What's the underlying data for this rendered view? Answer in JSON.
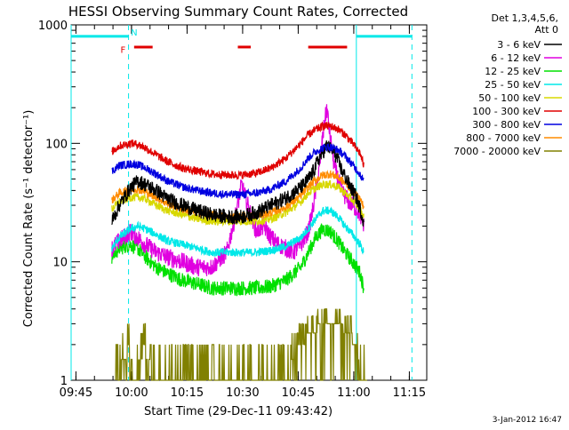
{
  "chart_data": {
    "type": "line",
    "title": "HESSI Observing Summary Count Rates, Corrected",
    "xlabel": "Start Time (29-Dec-11 09:43:42)",
    "ylabel": "Corrected Count Rate (s⁻¹ detector⁻¹)",
    "x_unit": "minutes after 09:43:42",
    "xlim": [
      0,
      96
    ],
    "ylim": [
      1,
      1000
    ],
    "yscale": "log",
    "x_ticks": [
      {
        "label": "09:45",
        "x": 1.3
      },
      {
        "label": "10:00",
        "x": 16.3
      },
      {
        "label": "10:15",
        "x": 31.3
      },
      {
        "label": "10:30",
        "x": 46.3
      },
      {
        "label": "10:45",
        "x": 61.3
      },
      {
        "label": "11:00",
        "x": 76.3
      },
      {
        "label": "11:15",
        "x": 91.3
      }
    ],
    "y_ticks": [
      {
        "label": "1",
        "value": 1
      },
      {
        "label": "10",
        "value": 10
      },
      {
        "label": "100",
        "value": 100
      },
      {
        "label": "1000",
        "value": 1000
      }
    ],
    "legend": {
      "position": "right",
      "header": [
        "Det 1,3,4,5,6,",
        "Att 0"
      ],
      "entries": [
        {
          "label": "3 - 6 keV",
          "color": "#000000"
        },
        {
          "label": "6 - 12 keV",
          "color": "#e000e0"
        },
        {
          "label": "12 - 25 keV",
          "color": "#00e000"
        },
        {
          "label": "25 - 50 keV",
          "color": "#00e8e8"
        },
        {
          "label": "50 - 100 keV",
          "color": "#d8d800"
        },
        {
          "label": "100 - 300 keV",
          "color": "#e00000"
        },
        {
          "label": "300 - 800 keV",
          "color": "#0000e0"
        },
        {
          "label": "800 - 7000 keV",
          "color": "#ff8c00"
        },
        {
          "label": "7000 - 20000 keV",
          "color": "#808000"
        }
      ]
    },
    "series": [
      {
        "name": "3 - 6 keV",
        "color": "#000000",
        "x": [
          11,
          13,
          16,
          18,
          20,
          23,
          26,
          30,
          34,
          38,
          42,
          46,
          48,
          50,
          53,
          56,
          60,
          63,
          65,
          67,
          69,
          71,
          73,
          75,
          77,
          78,
          79
        ],
        "y": [
          22,
          30,
          42,
          48,
          45,
          40,
          34,
          30,
          27,
          25,
          24,
          24,
          25,
          26,
          29,
          32,
          38,
          45,
          55,
          75,
          95,
          85,
          60,
          45,
          35,
          28,
          22
        ]
      },
      {
        "name": "6 - 12 keV",
        "color": "#e000e0",
        "x": [
          11,
          13,
          16,
          18,
          20,
          23,
          26,
          30,
          34,
          38,
          42,
          45,
          46,
          48,
          50,
          52,
          54,
          56,
          58,
          60,
          62,
          64,
          65,
          67,
          68,
          69,
          70,
          71,
          73,
          75,
          77,
          78,
          79
        ],
        "y": [
          13,
          15,
          18,
          16,
          14,
          12,
          11,
          10,
          9,
          9,
          12,
          30,
          45,
          28,
          18,
          20,
          16,
          14,
          13,
          12,
          14,
          18,
          25,
          60,
          120,
          200,
          110,
          65,
          40,
          32,
          28,
          25,
          20
        ]
      },
      {
        "name": "12 - 25 keV",
        "color": "#00e000",
        "x": [
          11,
          13,
          16,
          18,
          20,
          23,
          26,
          30,
          34,
          38,
          42,
          46,
          50,
          54,
          58,
          62,
          64,
          66,
          68,
          70,
          72,
          74,
          76,
          78,
          79
        ],
        "y": [
          11,
          13,
          14,
          13,
          11,
          9,
          8,
          7,
          6.5,
          6,
          6,
          6,
          6,
          6.2,
          7,
          9,
          12,
          16,
          19,
          18,
          15,
          12,
          10,
          8,
          6
        ]
      },
      {
        "name": "25 - 50 keV",
        "color": "#00e8e8",
        "x": [
          11,
          13,
          16,
          18,
          20,
          23,
          26,
          30,
          34,
          38,
          42,
          46,
          50,
          54,
          58,
          62,
          64,
          66,
          68,
          70,
          72,
          74,
          76,
          78,
          79
        ],
        "y": [
          13,
          16,
          19,
          20,
          19,
          17,
          15,
          14,
          13,
          12,
          12,
          12,
          12,
          12.5,
          13.5,
          16,
          19,
          23,
          27,
          27,
          24,
          20,
          17,
          14,
          12
        ]
      },
      {
        "name": "50 - 100 keV",
        "color": "#d8d800",
        "x": [
          11,
          13,
          16,
          18,
          20,
          23,
          26,
          30,
          34,
          38,
          42,
          46,
          50,
          54,
          58,
          62,
          64,
          66,
          68,
          70,
          72,
          74,
          76,
          78,
          79
        ],
        "y": [
          28,
          32,
          35,
          35,
          34,
          30,
          27,
          25,
          23,
          22,
          22,
          22,
          22,
          23,
          26,
          32,
          38,
          42,
          45,
          45,
          43,
          38,
          33,
          28,
          24
        ]
      },
      {
        "name": "100 - 300 keV",
        "color": "#e00000",
        "x": [
          11,
          13,
          16,
          18,
          20,
          23,
          26,
          30,
          34,
          38,
          42,
          46,
          50,
          54,
          58,
          62,
          64,
          66,
          68,
          70,
          72,
          74,
          76,
          78,
          79
        ],
        "y": [
          85,
          95,
          100,
          98,
          92,
          80,
          70,
          62,
          58,
          55,
          54,
          54,
          56,
          62,
          75,
          100,
          118,
          130,
          140,
          140,
          132,
          118,
          100,
          82,
          65
        ]
      },
      {
        "name": "300 - 800 keV",
        "color": "#0000e0",
        "x": [
          11,
          13,
          16,
          18,
          20,
          23,
          26,
          30,
          34,
          38,
          42,
          46,
          50,
          54,
          58,
          62,
          64,
          66,
          68,
          70,
          72,
          74,
          76,
          78,
          79
        ],
        "y": [
          58,
          65,
          67,
          66,
          62,
          55,
          48,
          43,
          40,
          38,
          37,
          37,
          38,
          41,
          48,
          62,
          75,
          85,
          92,
          93,
          88,
          78,
          66,
          55,
          48
        ]
      },
      {
        "name": "800 - 7000 keV",
        "color": "#ff8c00",
        "x": [
          11,
          13,
          16,
          18,
          20,
          23,
          26,
          30,
          34,
          38,
          42,
          46,
          50,
          54,
          58,
          62,
          64,
          66,
          68,
          70,
          72,
          74,
          76,
          78,
          79
        ],
        "y": [
          33,
          38,
          41,
          41,
          39,
          35,
          31,
          28,
          26,
          25,
          24,
          24,
          24.5,
          26,
          29,
          36,
          43,
          49,
          54,
          55,
          52,
          46,
          40,
          34,
          29
        ]
      },
      {
        "name": "7000 - 20000 keV",
        "color": "#808000",
        "x": [
          12,
          16,
          17,
          20,
          22,
          58,
          62,
          65,
          68,
          72,
          75,
          77,
          78,
          80
        ],
        "y": [
          1,
          2,
          1,
          2,
          1,
          1,
          2,
          2.5,
          3,
          3,
          2.5,
          2,
          1,
          1
        ]
      }
    ],
    "flag_bars": [
      {
        "name": "night",
        "color": "#00e8e8",
        "x_start": 0,
        "x_end": 15.5,
        "y": 800
      },
      {
        "name": "night",
        "color": "#00e8e8",
        "x_start": 77,
        "x_end": 92,
        "y": 800
      },
      {
        "name": "flare",
        "color": "#e00000",
        "x_start": 17,
        "x_end": 22,
        "y": 650
      },
      {
        "name": "flare",
        "color": "#e00000",
        "x_start": 45,
        "x_end": 48.5,
        "y": 650
      },
      {
        "name": "flare",
        "color": "#e00000",
        "x_start": 64,
        "x_end": 74.5,
        "y": 650
      }
    ],
    "vertical_markers": [
      {
        "name": "night-start-solid",
        "x": 0,
        "style": "solid",
        "color": "#00e8e8"
      },
      {
        "name": "night-end-dashed",
        "x": 15.5,
        "style": "dashed",
        "color": "#00e8e8"
      },
      {
        "name": "night-start-solid",
        "x": 77,
        "style": "solid",
        "color": "#00e8e8"
      },
      {
        "name": "night-end-dashed",
        "x": 92,
        "style": "dashed",
        "color": "#00e8e8"
      }
    ],
    "annotations": [
      {
        "text": "F",
        "color": "#e00000",
        "x": 14,
        "y": 620
      },
      {
        "text": "N",
        "color": "#00e8e8",
        "x": 17,
        "y": 870
      }
    ],
    "date_stamp": "3-Jan-2012 16:47"
  }
}
